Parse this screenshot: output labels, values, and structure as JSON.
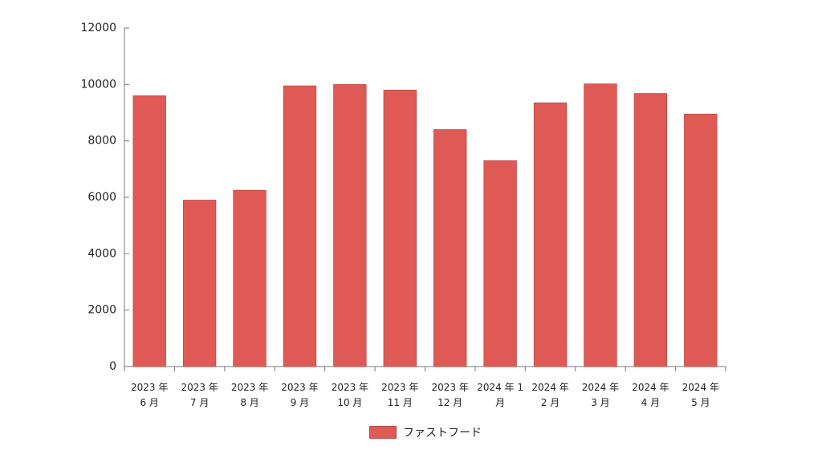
{
  "chart_data": {
    "type": "bar",
    "title": "",
    "xlabel": "",
    "ylabel": "",
    "categories": [
      "2023 年 6 月",
      "2023 年 7 月",
      "2023 年 8 月",
      "2023 年 9 月",
      "2023 年 10 月",
      "2023 年 11 月",
      "2023 年 12 月",
      "2024 年 1 月",
      "2024 年 2 月",
      "2024 年 3 月",
      "2024 年 4 月",
      "2024 年 5 月"
    ],
    "category_lines": [
      [
        "2023 年",
        "6 月"
      ],
      [
        "2023 年",
        "7 月"
      ],
      [
        "2023 年",
        "8 月"
      ],
      [
        "2023 年",
        "9 月"
      ],
      [
        "2023 年",
        "10 月"
      ],
      [
        "2023 年",
        "11 月"
      ],
      [
        "2023 年",
        "12 月"
      ],
      [
        "2024 年 1",
        "月"
      ],
      [
        "2024 年",
        "2 月"
      ],
      [
        "2024 年",
        "3 月"
      ],
      [
        "2024 年",
        "4 月"
      ],
      [
        "2024 年",
        "5 月"
      ]
    ],
    "series": [
      {
        "name": "ファストフード",
        "color": "#e05a55",
        "values": [
          9600,
          5900,
          6250,
          9950,
          10000,
          9800,
          8400,
          7300,
          9350,
          10020,
          9680,
          8950
        ]
      }
    ],
    "ylim": [
      0,
      12000
    ],
    "yticks": [
      0,
      2000,
      4000,
      6000,
      8000,
      10000,
      12000
    ],
    "ytick_labels": [
      "0",
      "2000",
      "4000",
      "6000",
      "8000",
      "10000",
      "12000"
    ],
    "grid": false,
    "legend_position": "bottom-center"
  },
  "legend": {
    "label": "ファストフード",
    "color": "#e05a55"
  }
}
